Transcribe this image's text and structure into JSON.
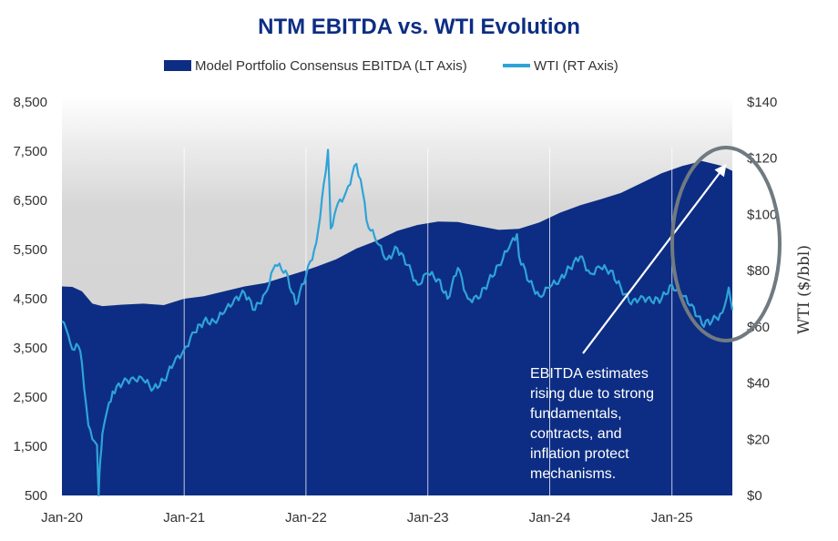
{
  "chart_data": {
    "type": "area",
    "title": "NTM EBITDA vs. WTI Evolution",
    "legend_position": "top",
    "y_left": {
      "label": "",
      "range": [
        500,
        8500
      ],
      "ticks": [
        "8,500",
        "7,500",
        "6,500",
        "5,500",
        "4,500",
        "3,500",
        "2,500",
        "1,500",
        "500"
      ]
    },
    "y_right": {
      "label": "WTI ($/bbl)",
      "range": [
        0,
        140
      ],
      "ticks": [
        "$140",
        "$120",
        "$100",
        "$80",
        "$60",
        "$40",
        "$20",
        "$0"
      ]
    },
    "x": {
      "range": [
        "2020-01",
        "2025-07"
      ],
      "ticks": [
        "Jan-20",
        "Jan-21",
        "Jan-22",
        "Jan-23",
        "Jan-24",
        "Jan-25"
      ]
    },
    "grid": "vertical at x ticks",
    "colors": {
      "ebitda": "#0c2d83",
      "wti": "#2fa3d8",
      "background_band": "#d6d6d6",
      "title": "#0c2d83",
      "circle": "#707a80",
      "arrow": "#ffffff"
    },
    "series": [
      {
        "name": "Model Portfolio Consensus EBITDA (LT Axis)",
        "axis": "left",
        "style": "area",
        "points": [
          [
            "2020-01",
            4750
          ],
          [
            "2020-02",
            4740
          ],
          [
            "2020-03",
            4650
          ],
          [
            "2020-04",
            4400
          ],
          [
            "2020-05",
            4350
          ],
          [
            "2020-07",
            4380
          ],
          [
            "2020-09",
            4400
          ],
          [
            "2020-11",
            4370
          ],
          [
            "2021-01",
            4500
          ],
          [
            "2021-03",
            4550
          ],
          [
            "2021-05",
            4650
          ],
          [
            "2021-07",
            4750
          ],
          [
            "2021-09",
            4820
          ],
          [
            "2021-11",
            4950
          ],
          [
            "2022-01",
            5080
          ],
          [
            "2022-02",
            5150
          ],
          [
            "2022-04",
            5300
          ],
          [
            "2022-06",
            5520
          ],
          [
            "2022-08",
            5680
          ],
          [
            "2022-10",
            5880
          ],
          [
            "2022-12",
            6000
          ],
          [
            "2023-02",
            6070
          ],
          [
            "2023-04",
            6060
          ],
          [
            "2023-06",
            5980
          ],
          [
            "2023-08",
            5900
          ],
          [
            "2023-10",
            5920
          ],
          [
            "2023-12",
            6050
          ],
          [
            "2024-02",
            6250
          ],
          [
            "2024-04",
            6400
          ],
          [
            "2024-06",
            6520
          ],
          [
            "2024-08",
            6650
          ],
          [
            "2024-10",
            6850
          ],
          [
            "2024-12",
            7050
          ],
          [
            "2025-02",
            7200
          ],
          [
            "2025-04",
            7300
          ],
          [
            "2025-06",
            7200
          ],
          [
            "2025-07",
            7100
          ]
        ]
      },
      {
        "name": "WTI (RT Axis)",
        "axis": "right",
        "style": "line",
        "points": [
          [
            "2020-01",
            62
          ],
          [
            "2020-01-20",
            57
          ],
          [
            "2020-02",
            52
          ],
          [
            "2020-02-20",
            53
          ],
          [
            "2020-03",
            47
          ],
          [
            "2020-03-20",
            25
          ],
          [
            "2020-04",
            20
          ],
          [
            "2020-04-15",
            18
          ],
          [
            "2020-04-20",
            0
          ],
          [
            "2020-04-25",
            13
          ],
          [
            "2020-05",
            22
          ],
          [
            "2020-05-15",
            30
          ],
          [
            "2020-06",
            37
          ],
          [
            "2020-07",
            40
          ],
          [
            "2020-08",
            42
          ],
          [
            "2020-09",
            41
          ],
          [
            "2020-10",
            38
          ],
          [
            "2020-11",
            41
          ],
          [
            "2020-12",
            47
          ],
          [
            "2021-01",
            52
          ],
          [
            "2021-02",
            58
          ],
          [
            "2021-03",
            62
          ],
          [
            "2021-04",
            62
          ],
          [
            "2021-05",
            65
          ],
          [
            "2021-06",
            70
          ],
          [
            "2021-07",
            72
          ],
          [
            "2021-08",
            66
          ],
          [
            "2021-09",
            72
          ],
          [
            "2021-10",
            82
          ],
          [
            "2021-11",
            80
          ],
          [
            "2021-12",
            68
          ],
          [
            "2022-01",
            78
          ],
          [
            "2022-02",
            90
          ],
          [
            "2022-03",
            115
          ],
          [
            "2022-03-08",
            123
          ],
          [
            "2022-03-16",
            95
          ],
          [
            "2022-04",
            102
          ],
          [
            "2022-05",
            108
          ],
          [
            "2022-06",
            118
          ],
          [
            "2022-06-20",
            108
          ],
          [
            "2022-07",
            98
          ],
          [
            "2022-08",
            90
          ],
          [
            "2022-09",
            84
          ],
          [
            "2022-10",
            88
          ],
          [
            "2022-11",
            82
          ],
          [
            "2022-12",
            75
          ],
          [
            "2023-01",
            79
          ],
          [
            "2023-02",
            77
          ],
          [
            "2023-03",
            70
          ],
          [
            "2023-04",
            81
          ],
          [
            "2023-05",
            70
          ],
          [
            "2023-06",
            70
          ],
          [
            "2023-07",
            76
          ],
          [
            "2023-08",
            82
          ],
          [
            "2023-09",
            88
          ],
          [
            "2023-09-25",
            93
          ],
          [
            "2023-10",
            85
          ],
          [
            "2023-11",
            76
          ],
          [
            "2023-12",
            71
          ],
          [
            "2024-01",
            74
          ],
          [
            "2024-02",
            77
          ],
          [
            "2024-03",
            81
          ],
          [
            "2024-04",
            85
          ],
          [
            "2024-05",
            79
          ],
          [
            "2024-06",
            81
          ],
          [
            "2024-07",
            80
          ],
          [
            "2024-08",
            74
          ],
          [
            "2024-09",
            68
          ],
          [
            "2024-10",
            71
          ],
          [
            "2024-11",
            69
          ],
          [
            "2024-12",
            70
          ],
          [
            "2025-01",
            75
          ],
          [
            "2025-02",
            71
          ],
          [
            "2025-03",
            68
          ],
          [
            "2025-04",
            61
          ],
          [
            "2025-05",
            62
          ],
          [
            "2025-06",
            65
          ],
          [
            "2025-06-20",
            74
          ],
          [
            "2025-07",
            66
          ]
        ]
      }
    ],
    "annotations": [
      {
        "text": "EBITDA estimates rising due to strong fundamentals, contracts, and inflation protect mechanisms.",
        "lines": [
          "EBITDA estimates",
          "rising due to strong",
          "fundamentals,",
          "contracts, and",
          "inflation protect",
          "mechanisms."
        ]
      }
    ]
  }
}
